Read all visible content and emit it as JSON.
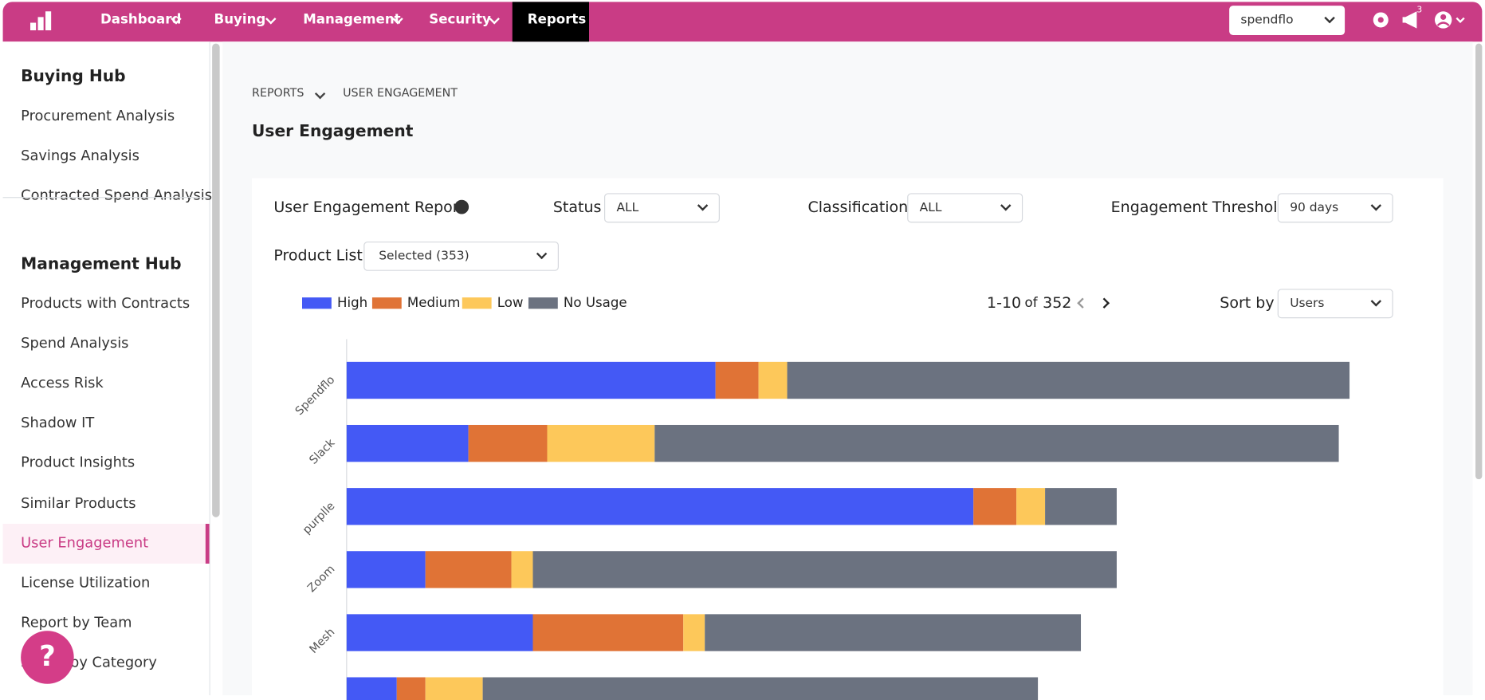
{
  "nav": {
    "items": [
      "Dashboard",
      "Buying",
      "Management",
      "Security",
      "Reports"
    ],
    "org_select": "spendflo",
    "notification_count": 3
  },
  "sidebar": {
    "sections": [
      {
        "title": "Buying Hub",
        "items": [
          "Procurement Analysis",
          "Savings Analysis",
          "Contracted Spend Analysis"
        ]
      },
      {
        "title": "Management Hub",
        "items": [
          "Products with Contracts",
          "Spend Analysis",
          "Access Risk",
          "Shadow IT",
          "Product Insights",
          "Similar Products",
          "User Engagement",
          "License Utilization",
          "Report by Team",
          "Spend by Category"
        ]
      }
    ]
  },
  "help": "?",
  "breadcrumb": [
    "REPORTS",
    "USER ENGAGEMENT"
  ],
  "page_title": "User Engagement",
  "filters": {
    "report_title": "User Engagement Report",
    "status": {
      "label": "Status",
      "value": "ALL"
    },
    "classification": {
      "label": "Classification",
      "value": "ALL"
    },
    "threshold": {
      "label": "Engagement Threshold",
      "value": "90 days"
    },
    "product_list": {
      "label": "Product List",
      "value": "Selected (353)"
    },
    "sort": {
      "label": "Sort by",
      "value": "Users"
    }
  },
  "pagination": {
    "range": "1-10",
    "of": "of",
    "total": 352
  },
  "chart_data": {
    "type": "bar",
    "orientation": "horizontal",
    "stacked": true,
    "categories": [
      "Spendflo",
      "Slack",
      "purplle",
      "Zoom",
      "Mesh",
      null
    ],
    "series": [
      {
        "name": "High",
        "color": "#4459f5",
        "values": [
          10.3,
          3.4,
          17.5,
          2.2,
          5.2,
          1.4
        ]
      },
      {
        "name": "Medium",
        "color": "#e07336",
        "values": [
          1.2,
          2.2,
          1.2,
          2.4,
          4.2,
          0.8
        ]
      },
      {
        "name": "Low",
        "color": "#fdc85a",
        "values": [
          0.8,
          3.0,
          0.8,
          0.6,
          0.6,
          1.6
        ]
      },
      {
        "name": "No Usage",
        "color": "#6b7280",
        "values": [
          15.7,
          19.1,
          2.0,
          16.3,
          10.5,
          15.5
        ]
      }
    ],
    "xlim": [
      0,
      28
    ]
  }
}
